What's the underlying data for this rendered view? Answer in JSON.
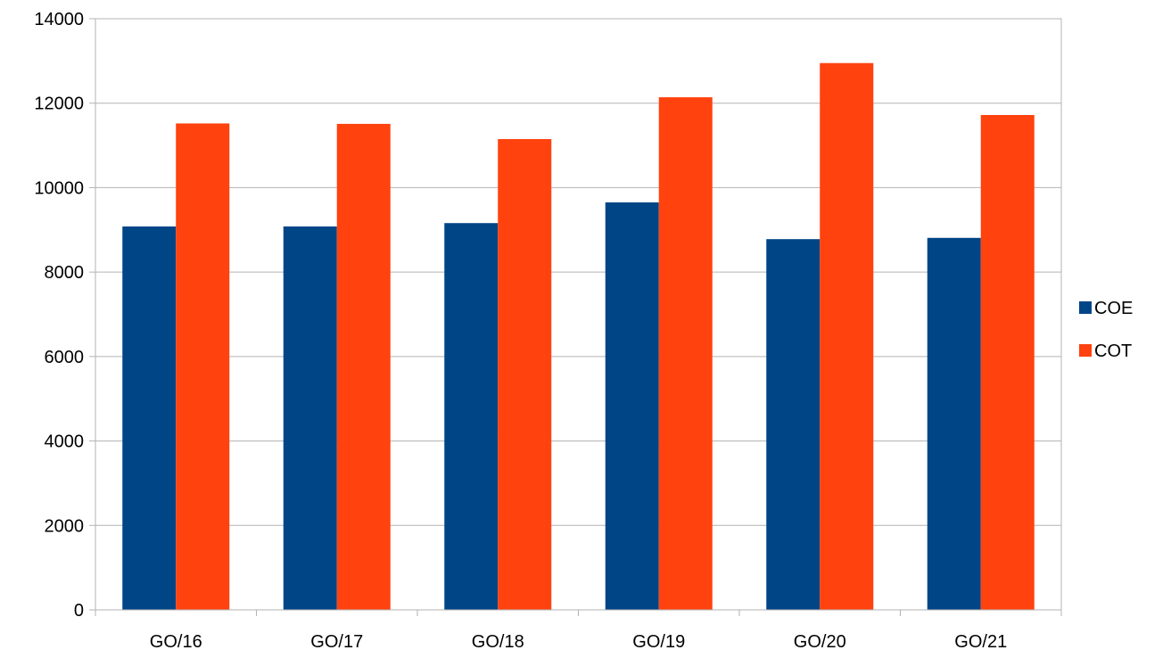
{
  "chart_data": {
    "type": "bar",
    "title": "",
    "xlabel": "",
    "ylabel": "",
    "categories": [
      "GO/16",
      "GO/17",
      "GO/18",
      "GO/19",
      "GO/20",
      "GO/21"
    ],
    "series": [
      {
        "name": "COE",
        "color": "#004586",
        "values": [
          9080,
          9080,
          9160,
          9650,
          8780,
          8810
        ]
      },
      {
        "name": "COT",
        "color": "#ff420e",
        "values": [
          11520,
          11510,
          11150,
          12140,
          12950,
          11720
        ]
      }
    ],
    "ylim": [
      0,
      14000
    ],
    "yticks": [
      0,
      2000,
      4000,
      6000,
      8000,
      10000,
      12000,
      14000
    ],
    "grid": true,
    "legend": "right"
  }
}
